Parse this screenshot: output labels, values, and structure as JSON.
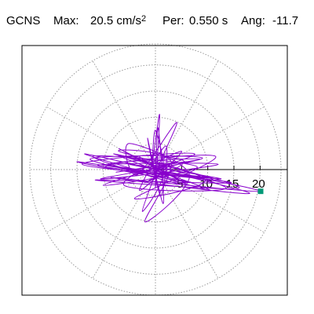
{
  "header": {
    "station": "GCNS",
    "max_label": "Max:",
    "max_value": "20.5",
    "max_unit": "cm/s",
    "max_unit_power": "2",
    "per_label": "Per:",
    "per_value": "0.550 s",
    "ang_label": "Ang:",
    "ang_value": "-11.7"
  },
  "chart_data": {
    "type": "polar-particle-motion",
    "title": "",
    "xlabel": "",
    "ylabel": "",
    "radial_ticks": [
      "5",
      "10",
      "15",
      "20"
    ],
    "radial_tick_values": [
      5,
      10,
      15,
      20
    ],
    "rlim": [
      0,
      24
    ],
    "spoke_angles_deg": [
      0,
      30,
      60,
      90,
      120,
      150,
      180,
      210,
      240,
      270,
      300,
      330
    ],
    "grid": true,
    "max_amplitude": 20.5,
    "max_angle_deg": -11.7,
    "trace_points": [
      [
        0.5,
        0.3
      ],
      [
        3.5,
        1.2
      ],
      [
        -4.0,
        -1.0
      ],
      [
        6.0,
        1.5
      ],
      [
        -7.5,
        -0.5
      ],
      [
        8.5,
        2.0
      ],
      [
        -9.0,
        1.0
      ],
      [
        10.0,
        -1.5
      ],
      [
        -11.0,
        0.8
      ],
      [
        12.0,
        1.0
      ],
      [
        -10.5,
        -1.8
      ],
      [
        9.0,
        2.2
      ],
      [
        -12.5,
        2.0
      ],
      [
        7.0,
        -2.5
      ],
      [
        -15.0,
        1.5
      ],
      [
        11.0,
        -2.0
      ],
      [
        -8.0,
        3.0
      ],
      [
        13.5,
        -3.5
      ],
      [
        -6.0,
        -3.0
      ],
      [
        5.0,
        3.5
      ],
      [
        -3.0,
        -4.0
      ],
      [
        2.0,
        4.5
      ],
      [
        1.0,
        -5.0
      ],
      [
        -1.5,
        6.0
      ],
      [
        1.5,
        -6.5
      ],
      [
        0.5,
        8.0
      ],
      [
        0.0,
        -3.5
      ],
      [
        0.8,
        10.5
      ],
      [
        -0.5,
        2.0
      ],
      [
        0.0,
        7.5
      ],
      [
        1.5,
        -1.0
      ],
      [
        -2.5,
        -8.0
      ],
      [
        0.5,
        0.5
      ],
      [
        4.0,
        9.0
      ],
      [
        -3.5,
        -1.0
      ],
      [
        -5.0,
        5.0
      ],
      [
        6.5,
        -1.0
      ],
      [
        -2.0,
        -10.0
      ],
      [
        3.0,
        1.5
      ],
      [
        -7.0,
        3.5
      ],
      [
        9.5,
        -2.0
      ],
      [
        -4.0,
        -5.5
      ],
      [
        11.5,
        2.5
      ],
      [
        -9.5,
        0.5
      ],
      [
        14.5,
        -2.5
      ],
      [
        -11.5,
        -2.0
      ],
      [
        16.0,
        -3.5
      ],
      [
        -6.5,
        2.5
      ],
      [
        10.5,
        -4.0
      ],
      [
        -13.5,
        3.0
      ],
      [
        18.0,
        -4.5
      ],
      [
        -8.5,
        -1.5
      ],
      [
        20.1,
        -4.15
      ],
      [
        -5.0,
        1.0
      ],
      [
        12.5,
        -1.8
      ],
      [
        -14.0,
        1.0
      ],
      [
        7.5,
        3.0
      ],
      [
        -10.0,
        -3.0
      ],
      [
        8.0,
        0.5
      ],
      [
        -12.0,
        2.5
      ],
      [
        6.0,
        -3.0
      ],
      [
        -7.0,
        4.0
      ],
      [
        4.5,
        -2.0
      ],
      [
        -3.0,
        2.5
      ],
      [
        5.5,
        1.5
      ],
      [
        -2.0,
        -2.5
      ],
      [
        3.0,
        0.5
      ],
      [
        -1.0,
        1.0
      ],
      [
        2.5,
        -1.5
      ],
      [
        0.0,
        0.0
      ]
    ],
    "end_marker": {
      "x": 20.1,
      "y": -4.15
    }
  },
  "colors": {
    "trace": "#8800cc",
    "marker": "#009977",
    "grid": "#9a9a9a",
    "axis": "#000000",
    "frame": "#000000"
  }
}
